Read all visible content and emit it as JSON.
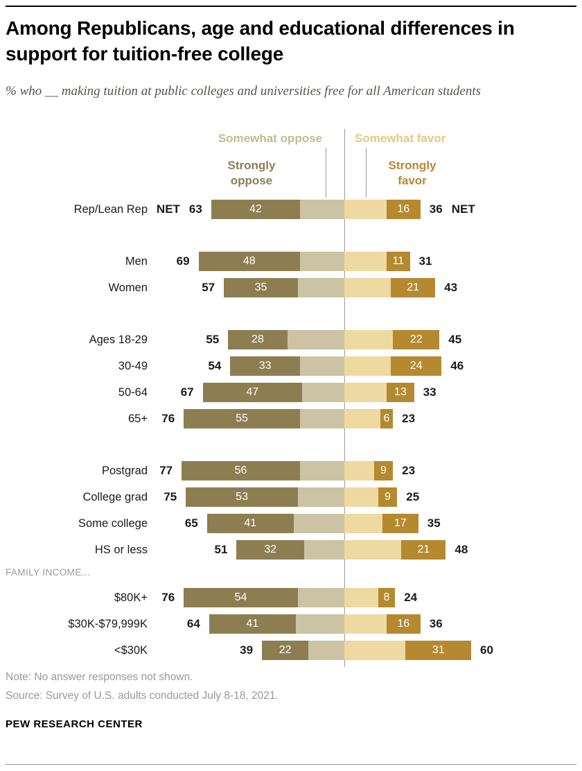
{
  "header": {
    "title": "Among Republicans, age and educational differences in support for tuition-free college",
    "subtitle": "% who __ making tuition at public colleges and universities free for all American students"
  },
  "legend": {
    "somewhat_oppose": "Somewhat oppose",
    "strongly_oppose": "Strongly oppose",
    "somewhat_favor": "Somewhat favor",
    "strongly_favor": "Strongly favor"
  },
  "chart_data": {
    "type": "diverging-stacked-bar",
    "title": "Among Republicans, age and educational differences in support for tuition-free college",
    "net_label": "NET",
    "section_label": "FAMILY INCOME...",
    "colors": {
      "strongly_oppose": "#8d7e52",
      "somewhat_oppose": "#ccc3a4",
      "somewhat_favor": "#eed9a1",
      "strongly_favor": "#b5892f",
      "ann_somewhat_oppose": "#c4ba93",
      "ann_somewhat_favor": "#e6c77d",
      "ann_strongly_oppose": "#8d7e52",
      "ann_strongly_favor": "#b5892f"
    },
    "rows": [
      {
        "label": "Rep/Lean Rep",
        "net_oppose": 63,
        "strongly_oppose": 42,
        "somewhat_oppose": 21,
        "somewhat_favor": 20,
        "strongly_favor": 16,
        "net_favor": 36,
        "group": 0,
        "net_label": true
      },
      {
        "label": "Men",
        "net_oppose": 69,
        "strongly_oppose": 48,
        "somewhat_oppose": 21,
        "somewhat_favor": 20,
        "strongly_favor": 11,
        "net_favor": 31,
        "group": 1
      },
      {
        "label": "Women",
        "net_oppose": 57,
        "strongly_oppose": 35,
        "somewhat_oppose": 22,
        "somewhat_favor": 22,
        "strongly_favor": 21,
        "net_favor": 43,
        "group": 1
      },
      {
        "label": "Ages 18-29",
        "net_oppose": 55,
        "strongly_oppose": 28,
        "somewhat_oppose": 27,
        "somewhat_favor": 23,
        "strongly_favor": 22,
        "net_favor": 45,
        "group": 2
      },
      {
        "label": "30-49",
        "net_oppose": 54,
        "strongly_oppose": 33,
        "somewhat_oppose": 21,
        "somewhat_favor": 22,
        "strongly_favor": 24,
        "net_favor": 46,
        "group": 2
      },
      {
        "label": "50-64",
        "net_oppose": 67,
        "strongly_oppose": 47,
        "somewhat_oppose": 20,
        "somewhat_favor": 20,
        "strongly_favor": 13,
        "net_favor": 33,
        "group": 2
      },
      {
        "label": "65+",
        "net_oppose": 76,
        "strongly_oppose": 55,
        "somewhat_oppose": 21,
        "somewhat_favor": 17,
        "strongly_favor": 6,
        "net_favor": 23,
        "group": 2
      },
      {
        "label": "Postgrad",
        "net_oppose": 77,
        "strongly_oppose": 56,
        "somewhat_oppose": 21,
        "somewhat_favor": 14,
        "strongly_favor": 9,
        "net_favor": 23,
        "group": 3
      },
      {
        "label": "College grad",
        "net_oppose": 75,
        "strongly_oppose": 53,
        "somewhat_oppose": 22,
        "somewhat_favor": 16,
        "strongly_favor": 9,
        "net_favor": 25,
        "group": 3
      },
      {
        "label": "Some college",
        "net_oppose": 65,
        "strongly_oppose": 41,
        "somewhat_oppose": 24,
        "somewhat_favor": 18,
        "strongly_favor": 17,
        "net_favor": 35,
        "group": 3
      },
      {
        "label": "HS or less",
        "net_oppose": 51,
        "strongly_oppose": 32,
        "somewhat_oppose": 19,
        "somewhat_favor": 27,
        "strongly_favor": 21,
        "net_favor": 48,
        "group": 3
      },
      {
        "label": "$80K+",
        "net_oppose": 76,
        "strongly_oppose": 54,
        "somewhat_oppose": 22,
        "somewhat_favor": 16,
        "strongly_favor": 8,
        "net_favor": 24,
        "group": 4,
        "section_before": true
      },
      {
        "label": "$30K-$79,999K",
        "net_oppose": 64,
        "strongly_oppose": 41,
        "somewhat_oppose": 23,
        "somewhat_favor": 20,
        "strongly_favor": 16,
        "net_favor": 36,
        "group": 4
      },
      {
        "label": "<$30K",
        "net_oppose": 39,
        "strongly_oppose": 22,
        "somewhat_oppose": 17,
        "somewhat_favor": 29,
        "strongly_favor": 31,
        "net_favor": 60,
        "group": 4
      }
    ]
  },
  "footer": {
    "note": "Note: No answer responses not shown.",
    "source": "Source: Survey of U.S. adults conducted July 8-18, 2021.",
    "brand": "PEW RESEARCH CENTER"
  }
}
